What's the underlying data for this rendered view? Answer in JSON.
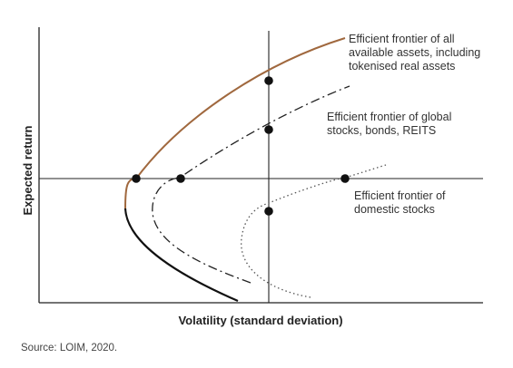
{
  "diagram": {
    "x_axis_title": "Volatility (standard deviation)",
    "y_axis_title": "Expected return",
    "curves": [
      {
        "name": "all-assets",
        "label": [
          "Efficient frontier of all",
          "available assets, including",
          "tokenised real assets"
        ],
        "color": "#a0683e"
      },
      {
        "name": "global",
        "label": [
          "Efficient frontier of global",
          "stocks, bonds, REITS"
        ],
        "color": "#222222"
      },
      {
        "name": "domestic",
        "label": [
          "Efficient frontier of",
          "domestic stocks"
        ],
        "color": "#555555"
      }
    ],
    "lower_branch_color": "#111111"
  },
  "source": "Source: LOIM, 2020."
}
